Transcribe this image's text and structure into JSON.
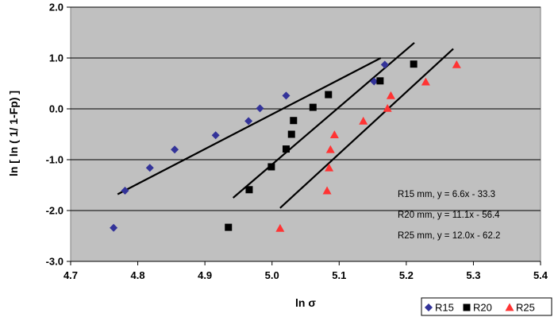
{
  "chart_data": {
    "type": "scatter",
    "title": "",
    "xlabel": "ln σ",
    "ylabel": "ln [ ln ( 1/ 1-Fp) ]",
    "xlim": [
      4.7,
      5.4
    ],
    "ylim": [
      -3.0,
      2.0
    ],
    "x_ticks": [
      "4.7",
      "4.8",
      "4.9",
      "5.0",
      "5.1",
      "5.2",
      "5.3",
      "5.4"
    ],
    "y_ticks": [
      "2.0",
      "1.0",
      "0.0",
      "-1.0",
      "-2.0",
      "-3.0"
    ],
    "x_tick_values": [
      4.7,
      4.8,
      4.9,
      5.0,
      5.1,
      5.2,
      5.3,
      5.4
    ],
    "y_tick_values": [
      2.0,
      1.0,
      0.0,
      -1.0,
      -2.0,
      -3.0
    ],
    "grid": "horizontal",
    "legend_position": "bottom-right",
    "plot_background": "#c0c0c0",
    "series": [
      {
        "name": "R15",
        "marker": "diamond",
        "color": "#333399",
        "points": [
          [
            4.764,
            -2.34
          ],
          [
            4.781,
            -1.61
          ],
          [
            4.818,
            -1.16
          ],
          [
            4.855,
            -0.8
          ],
          [
            4.916,
            -0.52
          ],
          [
            4.965,
            -0.24
          ],
          [
            4.982,
            0.01
          ],
          [
            5.021,
            0.26
          ],
          [
            5.152,
            0.54
          ],
          [
            5.168,
            0.87
          ]
        ],
        "fit_line": [
          [
            4.77,
            -1.68
          ],
          [
            5.162,
            1.0
          ]
        ]
      },
      {
        "name": "R20",
        "marker": "square",
        "color": "#000000",
        "points": [
          [
            4.935,
            -2.33
          ],
          [
            4.966,
            -1.59
          ],
          [
            4.999,
            -1.14
          ],
          [
            5.021,
            -0.79
          ],
          [
            5.029,
            -0.5
          ],
          [
            5.032,
            -0.23
          ],
          [
            5.061,
            0.03
          ],
          [
            5.084,
            0.28
          ],
          [
            5.161,
            0.55
          ],
          [
            5.211,
            0.88
          ]
        ],
        "fit_line": [
          [
            4.942,
            -1.75
          ],
          [
            5.212,
            1.3
          ]
        ]
      },
      {
        "name": "R25",
        "marker": "triangle",
        "color": "#ff3333",
        "points": [
          [
            5.012,
            -2.35
          ],
          [
            5.082,
            -1.61
          ],
          [
            5.085,
            -1.16
          ],
          [
            5.087,
            -0.8
          ],
          [
            5.093,
            -0.51
          ],
          [
            5.136,
            -0.24
          ],
          [
            5.172,
            0.01
          ],
          [
            5.177,
            0.26
          ],
          [
            5.229,
            0.53
          ],
          [
            5.275,
            0.87
          ]
        ],
        "fit_line": [
          [
            5.012,
            -1.95
          ],
          [
            5.27,
            1.18
          ]
        ]
      }
    ],
    "annotations": [
      "R15 mm, y = 6.6x - 33.3",
      "R20 mm, y = 11.1x - 56.4",
      "R25 mm, y = 12.0x - 62.2"
    ]
  }
}
